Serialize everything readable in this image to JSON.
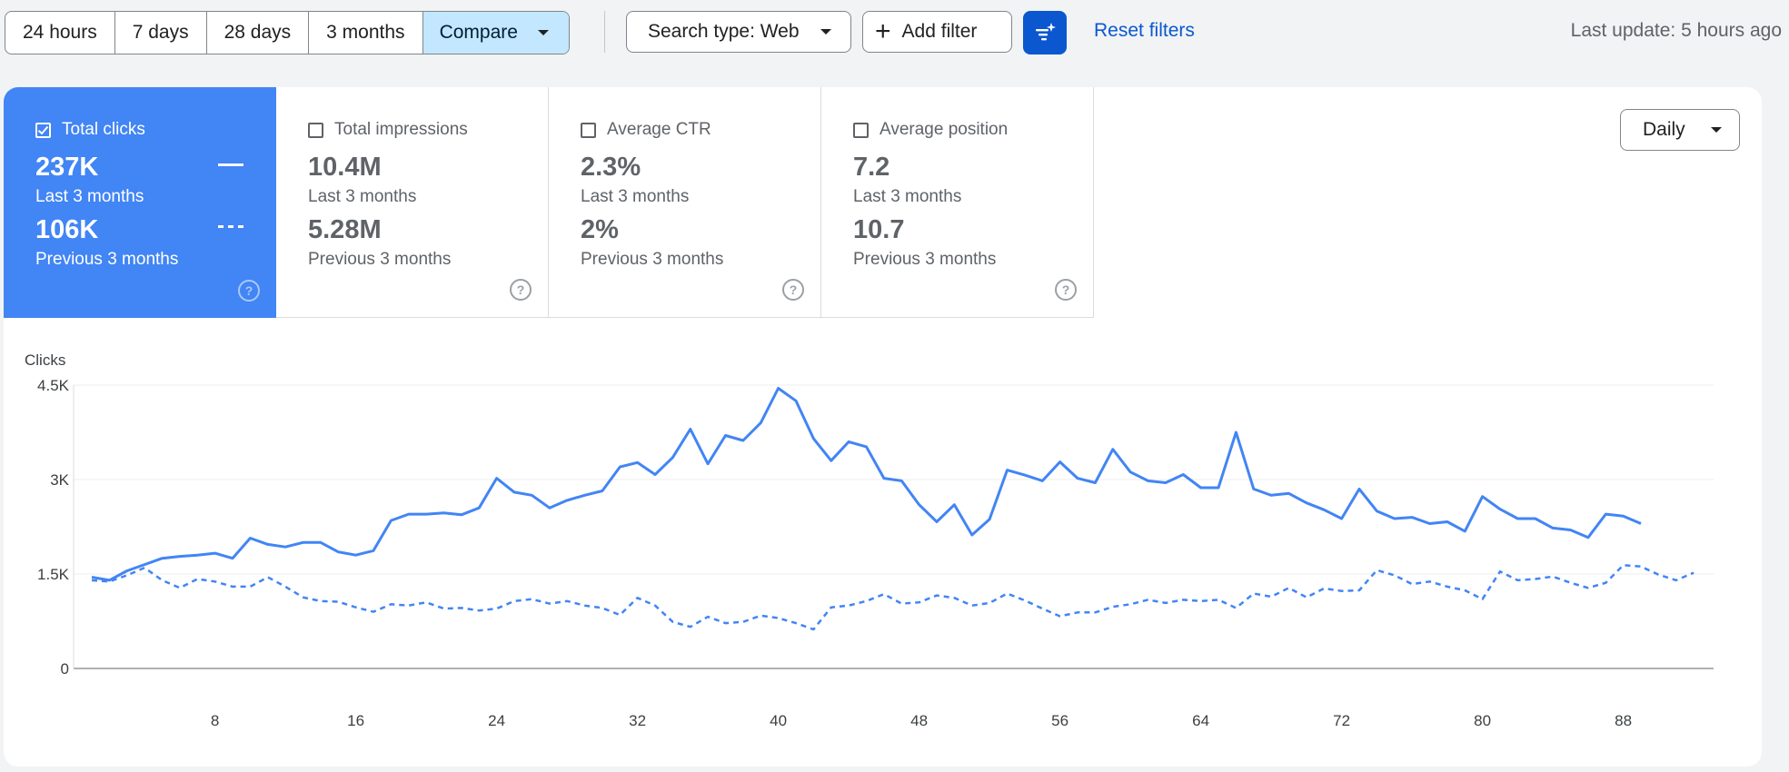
{
  "toolbar": {
    "ranges": [
      "24 hours",
      "7 days",
      "28 days",
      "3 months"
    ],
    "compare_label": "Compare",
    "search_type_label": "Search type: Web",
    "add_filter_label": "Add filter",
    "reset_label": "Reset filters",
    "last_update": "Last update: 5 hours ago"
  },
  "metrics": {
    "total_clicks": {
      "label": "Total clicks",
      "current": "237K",
      "current_period": "Last 3 months",
      "previous": "106K",
      "previous_period": "Previous 3 months",
      "checked": true
    },
    "total_impressions": {
      "label": "Total impressions",
      "current": "10.4M",
      "current_period": "Last 3 months",
      "previous": "5.28M",
      "previous_period": "Previous 3 months",
      "checked": false
    },
    "average_ctr": {
      "label": "Average CTR",
      "current": "2.3%",
      "current_period": "Last 3 months",
      "previous": "2%",
      "previous_period": "Previous 3 months",
      "checked": false
    },
    "average_position": {
      "label": "Average position",
      "current": "7.2",
      "current_period": "Last 3 months",
      "previous": "10.7",
      "previous_period": "Previous 3 months",
      "checked": false
    }
  },
  "granularity_label": "Daily",
  "colors": {
    "accent": "#4285f4",
    "primary_button": "#0b57d0",
    "selected_segment": "#c2e7ff"
  },
  "chart_data": {
    "type": "line",
    "ylabel": "Clicks",
    "y_ticks": [
      "0",
      "1.5K",
      "3K",
      "4.5K"
    ],
    "ylim": [
      0,
      4500
    ],
    "x_ticks": [
      8,
      16,
      24,
      32,
      40,
      48,
      56,
      64,
      72,
      80,
      88
    ],
    "grid": true,
    "series": [
      {
        "style": "solid",
        "values": [
          1450,
          1400,
          1550,
          1650,
          1750,
          1780,
          1800,
          1830,
          1750,
          2070,
          1970,
          1930,
          2000,
          2000,
          1850,
          1800,
          1870,
          2350,
          2450,
          2450,
          2470,
          2440,
          2550,
          3020,
          2800,
          2750,
          2550,
          2670,
          2750,
          2820,
          3200,
          3270,
          3080,
          3350,
          3800,
          3250,
          3700,
          3620,
          3900,
          4450,
          4250,
          3650,
          3300,
          3600,
          3520,
          3020,
          2980,
          2600,
          2330,
          2600,
          2120,
          2370,
          3150,
          3070,
          2980,
          3280,
          3020,
          2950,
          3480,
          3120,
          2980,
          2950,
          3080,
          2870,
          2870,
          3750,
          2850,
          2750,
          2780,
          2630,
          2520,
          2380,
          2850,
          2500,
          2380,
          2400,
          2300,
          2330,
          2180,
          2730,
          2530,
          2380,
          2380,
          2230,
          2200,
          2080,
          2450,
          2420,
          2300
        ]
      },
      {
        "style": "dashed",
        "values": [
          1400,
          1380,
          1480,
          1600,
          1400,
          1280,
          1420,
          1380,
          1300,
          1300,
          1450,
          1300,
          1130,
          1070,
          1060,
          970,
          900,
          1020,
          1000,
          1050,
          950,
          960,
          920,
          950,
          1070,
          1100,
          1030,
          1070,
          1000,
          960,
          850,
          1120,
          1000,
          740,
          660,
          820,
          720,
          740,
          840,
          800,
          720,
          620,
          970,
          1000,
          1070,
          1180,
          1030,
          1050,
          1160,
          1120,
          1000,
          1040,
          1190,
          1080,
          950,
          830,
          890,
          890,
          980,
          1020,
          1090,
          1040,
          1090,
          1070,
          1090,
          960,
          1190,
          1140,
          1280,
          1130,
          1270,
          1230,
          1240,
          1560,
          1480,
          1340,
          1380,
          1300,
          1240,
          1100,
          1540,
          1400,
          1420,
          1460,
          1360,
          1280,
          1360,
          1640,
          1620,
          1490,
          1400,
          1520
        ]
      }
    ]
  }
}
